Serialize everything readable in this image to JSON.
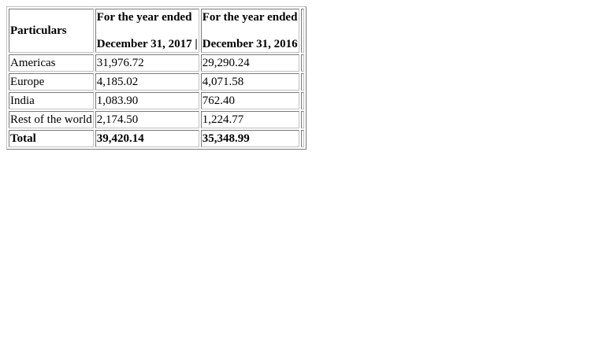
{
  "table": {
    "header": {
      "particulars": "Particulars",
      "col1_line1": "For the year ended",
      "col1_line2": "December 31, 2017 |",
      "col2_line1": "For the year ended",
      "col2_line2": "December 31, 2016"
    },
    "rows": [
      {
        "label": "Americas",
        "v2017": "31,976.72",
        "v2016": "29,290.24"
      },
      {
        "label": "Europe",
        "v2017": "4,185.02",
        "v2016": "4,071.58"
      },
      {
        "label": "India",
        "v2017": "1,083.90",
        "v2016": "762.40"
      },
      {
        "label": "Rest of the world",
        "v2017": "2,174.50",
        "v2016": "1,224.77"
      },
      {
        "label": "Total",
        "v2017": "39,420.14",
        "v2016": "35,348.99"
      }
    ]
  }
}
